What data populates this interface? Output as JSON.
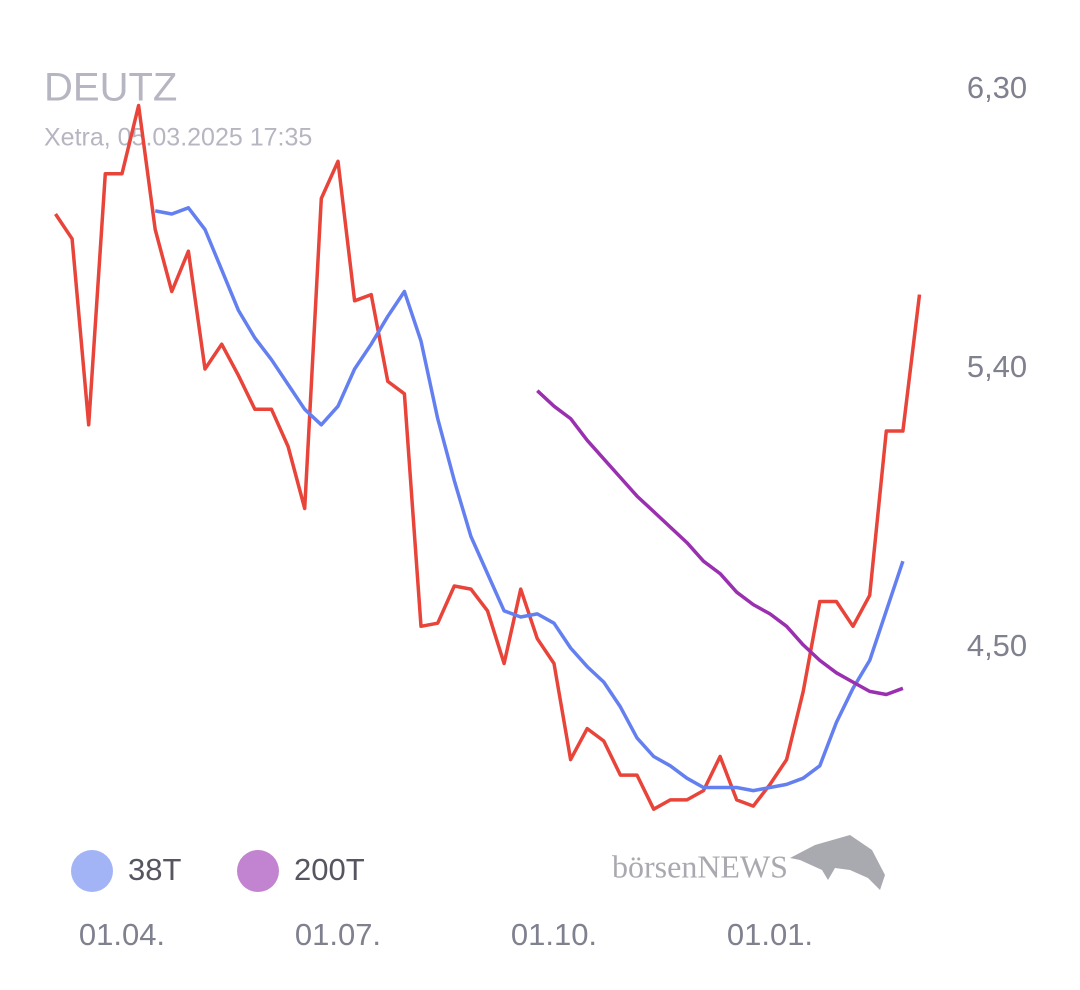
{
  "chart_data": {
    "type": "line",
    "title": "DEUTZ",
    "subtitle": "Xetra, 05.03.2025 17:35",
    "logo": "börsenNEWS",
    "categories": [
      null,
      null,
      null,
      null,
      "01.04.",
      null,
      null,
      null,
      null,
      null,
      null,
      null,
      null,
      null,
      null,
      null,
      null,
      "01.07.",
      null,
      null,
      null,
      null,
      null,
      null,
      null,
      null,
      null,
      null,
      null,
      null,
      "01.10.",
      null,
      null,
      null,
      null,
      null,
      null,
      null,
      null,
      null,
      null,
      null,
      null,
      "01.01.",
      null,
      null,
      null,
      null,
      null,
      null,
      null,
      null,
      null
    ],
    "series": [
      {
        "color": "#e8443a",
        "values": [
          5.9,
          5.82,
          5.22,
          6.03,
          6.03,
          6.25,
          5.85,
          5.65,
          5.78,
          5.4,
          5.48,
          5.38,
          5.27,
          5.27,
          5.15,
          4.95,
          5.95,
          6.07,
          5.62,
          5.64,
          5.36,
          5.32,
          4.57,
          4.58,
          4.7,
          4.69,
          4.62,
          4.45,
          4.69,
          4.53,
          4.45,
          4.14,
          4.24,
          4.2,
          4.09,
          4.09,
          3.98,
          4.01,
          4.01,
          4.04,
          4.15,
          4.01,
          3.99,
          4.06,
          4.14,
          4.36,
          4.65,
          4.65,
          4.57,
          4.67,
          5.2,
          5.2,
          5.64
        ]
      },
      {
        "name": "38T",
        "color": "#6480f0",
        "values": [
          null,
          null,
          null,
          null,
          null,
          null,
          5.91,
          5.9,
          5.92,
          5.85,
          5.72,
          5.59,
          5.5,
          5.43,
          5.35,
          5.27,
          5.22,
          5.28,
          5.4,
          5.48,
          5.57,
          5.65,
          5.49,
          5.24,
          5.04,
          4.86,
          4.74,
          4.62,
          4.6,
          4.61,
          4.58,
          4.5,
          4.44,
          4.39,
          4.31,
          4.21,
          4.15,
          4.12,
          4.08,
          4.05,
          4.05,
          4.05,
          4.04,
          4.05,
          4.06,
          4.08,
          4.12,
          4.26,
          4.37,
          4.46,
          4.62,
          4.78,
          null
        ]
      },
      {
        "name": "200T",
        "color": "#9a30b0",
        "values": [
          null,
          null,
          null,
          null,
          null,
          null,
          null,
          null,
          null,
          null,
          null,
          null,
          null,
          null,
          null,
          null,
          null,
          null,
          null,
          null,
          null,
          null,
          null,
          null,
          null,
          null,
          null,
          null,
          null,
          5.33,
          5.28,
          5.24,
          5.17,
          5.11,
          5.05,
          4.99,
          4.94,
          4.89,
          4.84,
          4.78,
          4.74,
          4.68,
          4.64,
          4.61,
          4.57,
          4.51,
          4.46,
          4.42,
          4.39,
          4.36,
          4.35,
          4.37,
          null
        ]
      }
    ],
    "ylim": [
      3.9,
      6.4
    ],
    "yticks": [
      {
        "value": 4.5,
        "label": "4,50"
      },
      {
        "value": 5.4,
        "label": "5,40"
      },
      {
        "value": 6.3,
        "label": "6,30"
      }
    ]
  }
}
